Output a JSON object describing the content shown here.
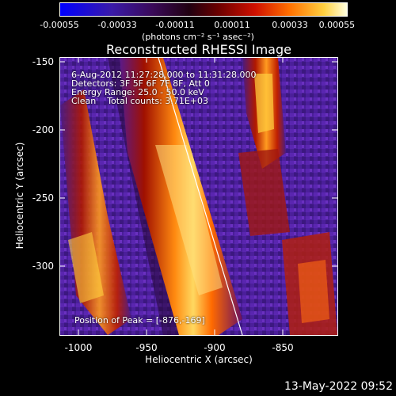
{
  "colorbar": {
    "ticks": [
      "-0.00055",
      "-0.00033",
      "-0.00011",
      "0.00011",
      "0.00033",
      "0.00055"
    ],
    "units": "(photons cm⁻² s⁻¹ asec⁻²)"
  },
  "title": "Reconstructed RHESSI Image",
  "info": {
    "time": "6-Aug-2012 11:27:28.000 to 11:31:28.000",
    "detectors": "Detectors: 3F 5F 6F 7F 8F, Att 0",
    "energy": "Energy Range: 25.0 - 50.0 keV",
    "method": "Clean    Total counts: 3.71E+03"
  },
  "peak": "Position of Peak = [-876,-169]",
  "axes": {
    "xlabel": "Heliocentric X (arcsec)",
    "ylabel": "Heliocentric Y (arcsec)",
    "xticks": [
      "-1000",
      "-950",
      "-900",
      "-850"
    ],
    "yticks": [
      "-150",
      "-200",
      "-250",
      "-300"
    ]
  },
  "timestamp": "13-May-2022 09:52"
}
